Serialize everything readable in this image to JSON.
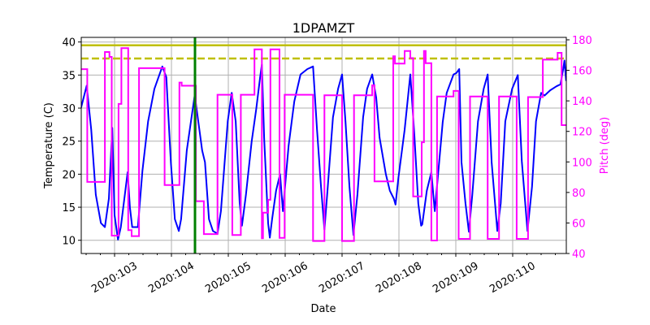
{
  "chart_data": {
    "type": "line",
    "title": "1DPAMZT",
    "xlabel": "Date",
    "ylabel": "Temperature (C)",
    "ylabel_right": "Pitch (deg)",
    "xlim": [
      102.414,
      110.943
    ],
    "ylim": [
      8.0,
      40.7
    ],
    "ylim_right": [
      40,
      181.6
    ],
    "x_ticks": [
      103,
      104,
      105,
      106,
      107,
      108,
      109,
      110
    ],
    "x_tick_labels": [
      "2020:103",
      "2020:104",
      "2020:105",
      "2020:106",
      "2020:107",
      "2020:108",
      "2020:109",
      "2020:110"
    ],
    "y_ticks": [
      10,
      15,
      20,
      25,
      30,
      35,
      40
    ],
    "y_ticks_right": [
      40,
      60,
      80,
      100,
      120,
      140,
      160,
      180
    ],
    "grid": true,
    "colors": {
      "temperature": "#0000ff",
      "pitch": "#ff00ff",
      "limit": "#bfbf00",
      "marker": "#008000",
      "right_axis": "#ff00ff"
    },
    "hlines": [
      {
        "y": 39.5,
        "style": "solid"
      },
      {
        "y": 37.5,
        "style": "dashed"
      }
    ],
    "vline": {
      "x": 104.414
    },
    "series": [
      {
        "axis": "left",
        "points": [
          [
            102.41,
            30.0
          ],
          [
            102.51,
            33.4
          ],
          [
            102.59,
            26.7
          ],
          [
            102.67,
            16.9
          ],
          [
            102.76,
            12.6
          ],
          [
            102.83,
            12.0
          ],
          [
            102.9,
            16.3
          ],
          [
            102.96,
            27.0
          ],
          [
            103.0,
            13.8
          ],
          [
            103.06,
            10.1
          ],
          [
            103.11,
            12.0
          ],
          [
            103.23,
            20.3
          ],
          [
            103.27,
            15.0
          ],
          [
            103.31,
            12.0
          ],
          [
            103.41,
            12.0
          ],
          [
            103.49,
            20.5
          ],
          [
            103.59,
            28.0
          ],
          [
            103.7,
            32.9
          ],
          [
            103.84,
            36.3
          ],
          [
            103.91,
            34.7
          ],
          [
            103.99,
            21.8
          ],
          [
            104.06,
            13.2
          ],
          [
            104.13,
            11.4
          ],
          [
            104.17,
            13.2
          ],
          [
            104.27,
            23.6
          ],
          [
            104.41,
            32.0
          ],
          [
            104.54,
            23.6
          ],
          [
            104.59,
            21.8
          ],
          [
            104.66,
            13.2
          ],
          [
            104.73,
            11.4
          ],
          [
            104.81,
            11.0
          ],
          [
            104.87,
            14.4
          ],
          [
            104.99,
            28.0
          ],
          [
            105.06,
            32.3
          ],
          [
            105.13,
            28.0
          ],
          [
            105.2,
            15.6
          ],
          [
            105.24,
            12.2
          ],
          [
            105.31,
            16.9
          ],
          [
            105.41,
            24.9
          ],
          [
            105.49,
            29.8
          ],
          [
            105.56,
            34.7
          ],
          [
            105.59,
            36.6
          ],
          [
            105.63,
            25.5
          ],
          [
            105.7,
            12.6
          ],
          [
            105.73,
            10.4
          ],
          [
            105.77,
            13.2
          ],
          [
            105.84,
            17.5
          ],
          [
            105.91,
            20.0
          ],
          [
            105.96,
            14.4
          ],
          [
            106.06,
            24.3
          ],
          [
            106.16,
            31.0
          ],
          [
            106.27,
            35.1
          ],
          [
            106.39,
            35.9
          ],
          [
            106.49,
            36.3
          ],
          [
            106.56,
            26.7
          ],
          [
            106.63,
            18.1
          ],
          [
            106.69,
            11.6
          ],
          [
            106.74,
            17.1
          ],
          [
            106.84,
            28.6
          ],
          [
            106.93,
            32.9
          ],
          [
            107.0,
            35.1
          ],
          [
            107.06,
            28.0
          ],
          [
            107.13,
            18.1
          ],
          [
            107.2,
            10.8
          ],
          [
            107.27,
            16.9
          ],
          [
            107.37,
            28.6
          ],
          [
            107.44,
            32.9
          ],
          [
            107.53,
            35.1
          ],
          [
            107.6,
            31.6
          ],
          [
            107.66,
            25.5
          ],
          [
            107.77,
            20.0
          ],
          [
            107.84,
            17.5
          ],
          [
            107.91,
            16.3
          ],
          [
            107.94,
            15.4
          ],
          [
            107.99,
            19.4
          ],
          [
            108.1,
            26.7
          ],
          [
            108.2,
            35.1
          ],
          [
            108.27,
            26.1
          ],
          [
            108.34,
            15.6
          ],
          [
            108.39,
            12.2
          ],
          [
            108.41,
            12.4
          ],
          [
            108.49,
            17.5
          ],
          [
            108.57,
            20.3
          ],
          [
            108.63,
            14.4
          ],
          [
            108.7,
            21.1
          ],
          [
            108.77,
            27.9
          ],
          [
            108.84,
            32.3
          ],
          [
            108.96,
            35.1
          ],
          [
            109.01,
            35.3
          ],
          [
            109.06,
            35.9
          ],
          [
            109.1,
            21.8
          ],
          [
            109.17,
            15.6
          ],
          [
            109.23,
            11.3
          ],
          [
            109.29,
            16.9
          ],
          [
            109.39,
            28.0
          ],
          [
            109.49,
            32.9
          ],
          [
            109.56,
            35.1
          ],
          [
            109.63,
            21.8
          ],
          [
            109.73,
            11.4
          ],
          [
            109.79,
            15.6
          ],
          [
            109.87,
            28.0
          ],
          [
            109.99,
            32.9
          ],
          [
            110.09,
            35.0
          ],
          [
            110.16,
            22.0
          ],
          [
            110.26,
            11.4
          ],
          [
            110.34,
            18.1
          ],
          [
            110.41,
            28.0
          ],
          [
            110.5,
            32.3
          ],
          [
            110.56,
            31.9
          ],
          [
            110.66,
            32.7
          ],
          [
            110.77,
            33.3
          ],
          [
            110.84,
            33.6
          ],
          [
            110.89,
            36.0
          ],
          [
            110.91,
            37.2
          ],
          [
            110.94,
            34.1
          ]
        ]
      },
      {
        "axis": "right",
        "step": "post",
        "points": [
          [
            102.41,
            160.8
          ],
          [
            102.52,
            86.9
          ],
          [
            102.83,
            172
          ],
          [
            102.91,
            168.8
          ],
          [
            102.95,
            51.7
          ],
          [
            103.07,
            138
          ],
          [
            103.12,
            174.5
          ],
          [
            103.24,
            55.3
          ],
          [
            103.3,
            51.4
          ],
          [
            103.43,
            161.4
          ],
          [
            103.88,
            84.9
          ],
          [
            104.14,
            152
          ],
          [
            104.18,
            149.9
          ],
          [
            104.43,
            74.3
          ],
          [
            104.57,
            52.7
          ],
          [
            104.81,
            144
          ],
          [
            105.07,
            52.1
          ],
          [
            105.22,
            144
          ],
          [
            105.46,
            173.8
          ],
          [
            105.59,
            50
          ],
          [
            105.61,
            66.8
          ],
          [
            105.7,
            75.2
          ],
          [
            105.74,
            173.8
          ],
          [
            105.9,
            50.3
          ],
          [
            105.99,
            144
          ],
          [
            106.49,
            48.2
          ],
          [
            106.69,
            143.7
          ],
          [
            107.0,
            48.2
          ],
          [
            107.21,
            143.7
          ],
          [
            107.53,
            150.2
          ],
          [
            107.57,
            87.2
          ],
          [
            107.9,
            169.2
          ],
          [
            107.93,
            164.4
          ],
          [
            108.1,
            172.7
          ],
          [
            108.2,
            168
          ],
          [
            108.25,
            77.4
          ],
          [
            108.4,
            112.9
          ],
          [
            108.44,
            172.7
          ],
          [
            108.47,
            164.7
          ],
          [
            108.57,
            48.5
          ],
          [
            108.67,
            142.9
          ],
          [
            108.96,
            146.5
          ],
          [
            109.05,
            49.6
          ],
          [
            109.25,
            142.9
          ],
          [
            109.56,
            49.6
          ],
          [
            109.76,
            142.9
          ],
          [
            110.07,
            49.6
          ],
          [
            110.27,
            142.5
          ],
          [
            110.53,
            167
          ],
          [
            110.79,
            171.5
          ],
          [
            110.86,
            124.1
          ],
          [
            110.94,
            124.1
          ]
        ]
      }
    ]
  }
}
